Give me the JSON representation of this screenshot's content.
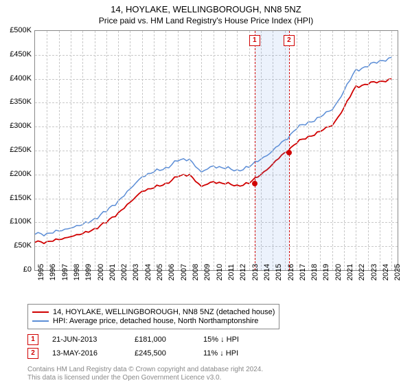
{
  "title": "14, HOYLAKE, WELLINGBOROUGH, NN8 5NZ",
  "subtitle": "Price paid vs. HM Land Registry's House Price Index (HPI)",
  "chart": {
    "type": "line",
    "x_range": [
      1995,
      2025.5
    ],
    "y_range": [
      0,
      500000
    ],
    "y_ticks": [
      0,
      50000,
      100000,
      150000,
      200000,
      250000,
      300000,
      350000,
      400000,
      450000,
      500000
    ],
    "y_tick_labels": [
      "£0",
      "£50K",
      "£100K",
      "£150K",
      "£200K",
      "£250K",
      "£300K",
      "£350K",
      "£400K",
      "£450K",
      "£500K"
    ],
    "x_ticks": [
      1995,
      1996,
      1997,
      1998,
      1999,
      2000,
      2001,
      2002,
      2003,
      2004,
      2005,
      2006,
      2007,
      2008,
      2009,
      2010,
      2011,
      2012,
      2013,
      2014,
      2015,
      2016,
      2017,
      2018,
      2019,
      2020,
      2021,
      2022,
      2023,
      2024,
      2025
    ],
    "grid_color": "#c8c8c8",
    "background_color": "#ffffff",
    "series": {
      "hpi": {
        "label": "HPI: Average price, detached house, North Northamptonshire",
        "color": "#5b8dd6",
        "width": 1.5,
        "points": [
          [
            1995,
            75000
          ],
          [
            1996,
            77000
          ],
          [
            1997,
            82000
          ],
          [
            1998,
            88000
          ],
          [
            1999,
            95000
          ],
          [
            2000,
            108000
          ],
          [
            2001,
            122000
          ],
          [
            2002,
            145000
          ],
          [
            2003,
            170000
          ],
          [
            2004,
            195000
          ],
          [
            2005,
            205000
          ],
          [
            2006,
            215000
          ],
          [
            2007,
            228000
          ],
          [
            2008,
            232000
          ],
          [
            2009,
            205000
          ],
          [
            2010,
            218000
          ],
          [
            2011,
            212000
          ],
          [
            2012,
            210000
          ],
          [
            2013,
            215000
          ],
          [
            2014,
            232000
          ],
          [
            2015,
            250000
          ],
          [
            2016,
            272000
          ],
          [
            2017,
            295000
          ],
          [
            2018,
            310000
          ],
          [
            2019,
            320000
          ],
          [
            2020,
            335000
          ],
          [
            2021,
            375000
          ],
          [
            2022,
            420000
          ],
          [
            2023,
            425000
          ],
          [
            2024,
            438000
          ],
          [
            2025,
            445000
          ]
        ]
      },
      "paid": {
        "label": "14, HOYLAKE, WELLINGBOROUGH, NN8 5NZ (detached house)",
        "color": "#d00000",
        "width": 1.8,
        "points": [
          [
            1995,
            58000
          ],
          [
            1996,
            60000
          ],
          [
            1997,
            64000
          ],
          [
            1998,
            70000
          ],
          [
            1999,
            76000
          ],
          [
            2000,
            87000
          ],
          [
            2001,
            99000
          ],
          [
            2002,
            120000
          ],
          [
            2003,
            142000
          ],
          [
            2004,
            165000
          ],
          [
            2005,
            172000
          ],
          [
            2006,
            182000
          ],
          [
            2007,
            195000
          ],
          [
            2008,
            200000
          ],
          [
            2009,
            175000
          ],
          [
            2010,
            185000
          ],
          [
            2011,
            180000
          ],
          [
            2012,
            178000
          ],
          [
            2013,
            181000
          ],
          [
            2014,
            200000
          ],
          [
            2015,
            222000
          ],
          [
            2016,
            245500
          ],
          [
            2017,
            265000
          ],
          [
            2018,
            280000
          ],
          [
            2019,
            290000
          ],
          [
            2020,
            302000
          ],
          [
            2021,
            340000
          ],
          [
            2022,
            385000
          ],
          [
            2023,
            388000
          ],
          [
            2024,
            395000
          ],
          [
            2025,
            400000
          ]
        ]
      }
    },
    "sale_markers": [
      {
        "n": "1",
        "x": 2013.47,
        "date": "21-JUN-2013",
        "price": "£181,000",
        "vs_hpi": "15% ↓ HPI",
        "y": 181000
      },
      {
        "n": "2",
        "x": 2016.37,
        "date": "13-MAY-2016",
        "price": "£245,500",
        "vs_hpi": "11% ↓ HPI",
        "y": 245500
      }
    ],
    "band": {
      "from": 2013.47,
      "to": 2016.37,
      "color": "rgba(100,150,230,0.12)"
    },
    "marker_box_color": "#d00000",
    "marker_dot_color": "#d00000"
  },
  "footer_line1": "Contains HM Land Registry data © Crown copyright and database right 2024.",
  "footer_line2": "This data is licensed under the Open Government Licence v3.0."
}
